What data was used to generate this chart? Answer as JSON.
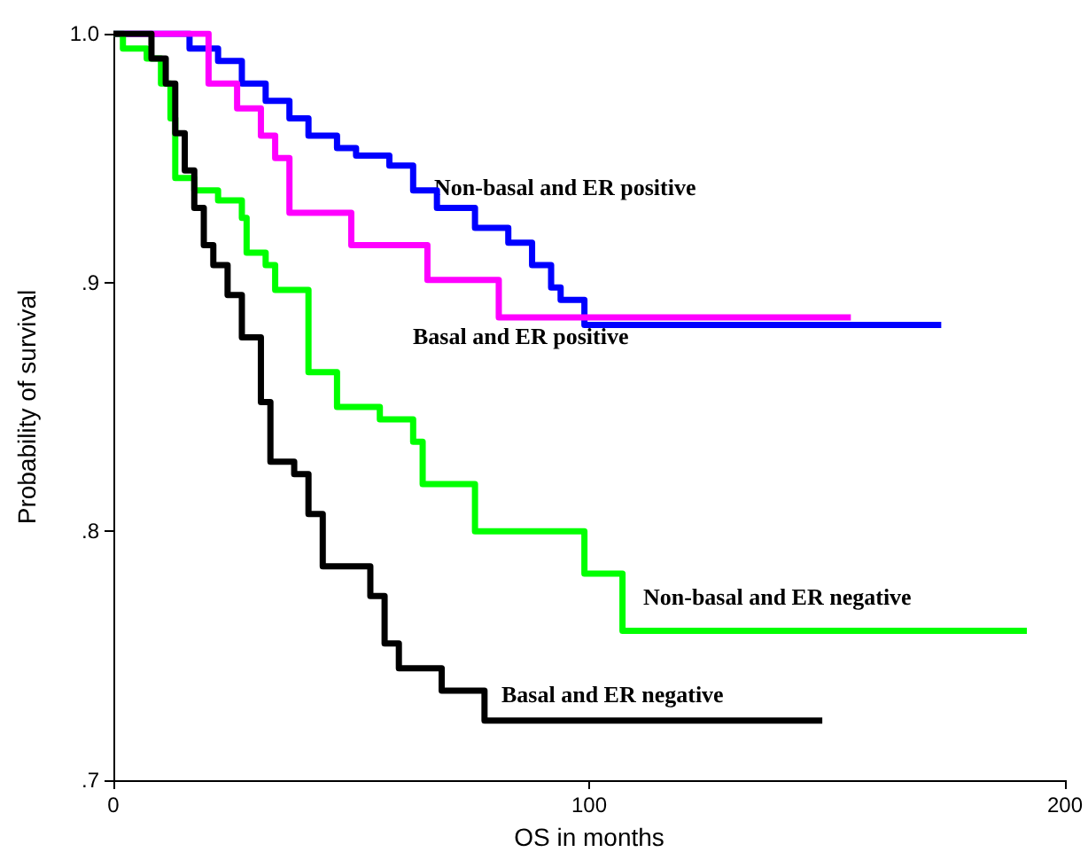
{
  "chart_data": {
    "type": "step",
    "xlabel": "OS in months",
    "ylabel": "Probability of survival",
    "xlim": [
      0,
      200
    ],
    "ylim": [
      0.7,
      1.0
    ],
    "xticks": [
      0,
      100,
      200
    ],
    "yticks": [
      {
        "value": 0.7,
        "label": ".7"
      },
      {
        "value": 0.8,
        "label": ".8"
      },
      {
        "value": 0.9,
        "label": ".9"
      },
      {
        "value": 1.0,
        "label": "1.0"
      }
    ],
    "grid": false,
    "marker": "none",
    "line_style": "solid",
    "series": [
      {
        "name": "Non-basal and ER positive",
        "color": "#0000ff",
        "x": [
          0,
          16,
          22,
          27,
          32,
          37,
          41,
          47,
          51,
          58,
          63,
          68,
          76,
          83,
          88,
          92,
          94,
          99,
          174
        ],
        "values": [
          1,
          0.994,
          0.989,
          0.98,
          0.973,
          0.966,
          0.959,
          0.954,
          0.951,
          0.947,
          0.937,
          0.93,
          0.922,
          0.916,
          0.907,
          0.898,
          0.893,
          0.883,
          0.883
        ]
      },
      {
        "name": "Basal and ER positive",
        "color": "#ff00ff",
        "x": [
          0,
          20,
          26,
          31,
          34,
          37,
          50,
          66,
          81,
          155
        ],
        "values": [
          1,
          0.98,
          0.97,
          0.959,
          0.95,
          0.928,
          0.915,
          0.901,
          0.886,
          0.886
        ]
      },
      {
        "name": "Non-basal and ER negative",
        "color": "#00ff00",
        "x": [
          0,
          2,
          7,
          10,
          12,
          13,
          17,
          22,
          27,
          28,
          32,
          34,
          41,
          47,
          56,
          63,
          65,
          76,
          99,
          107,
          192
        ],
        "values": [
          1,
          0.994,
          0.99,
          0.98,
          0.966,
          0.942,
          0.937,
          0.933,
          0.926,
          0.912,
          0.907,
          0.897,
          0.864,
          0.85,
          0.845,
          0.836,
          0.819,
          0.8,
          0.783,
          0.76,
          0.76
        ]
      },
      {
        "name": "Basal and ER negative",
        "color": "#000000",
        "x": [
          0,
          8,
          11,
          13,
          15,
          17,
          19,
          21,
          24,
          27,
          31,
          33,
          38,
          41,
          44,
          54,
          57,
          60,
          69,
          78,
          149
        ],
        "values": [
          1,
          0.99,
          0.98,
          0.96,
          0.945,
          0.93,
          0.915,
          0.907,
          0.895,
          0.878,
          0.852,
          0.828,
          0.823,
          0.807,
          0.786,
          0.774,
          0.755,
          0.745,
          0.736,
          0.724,
          0.724
        ]
      }
    ]
  }
}
